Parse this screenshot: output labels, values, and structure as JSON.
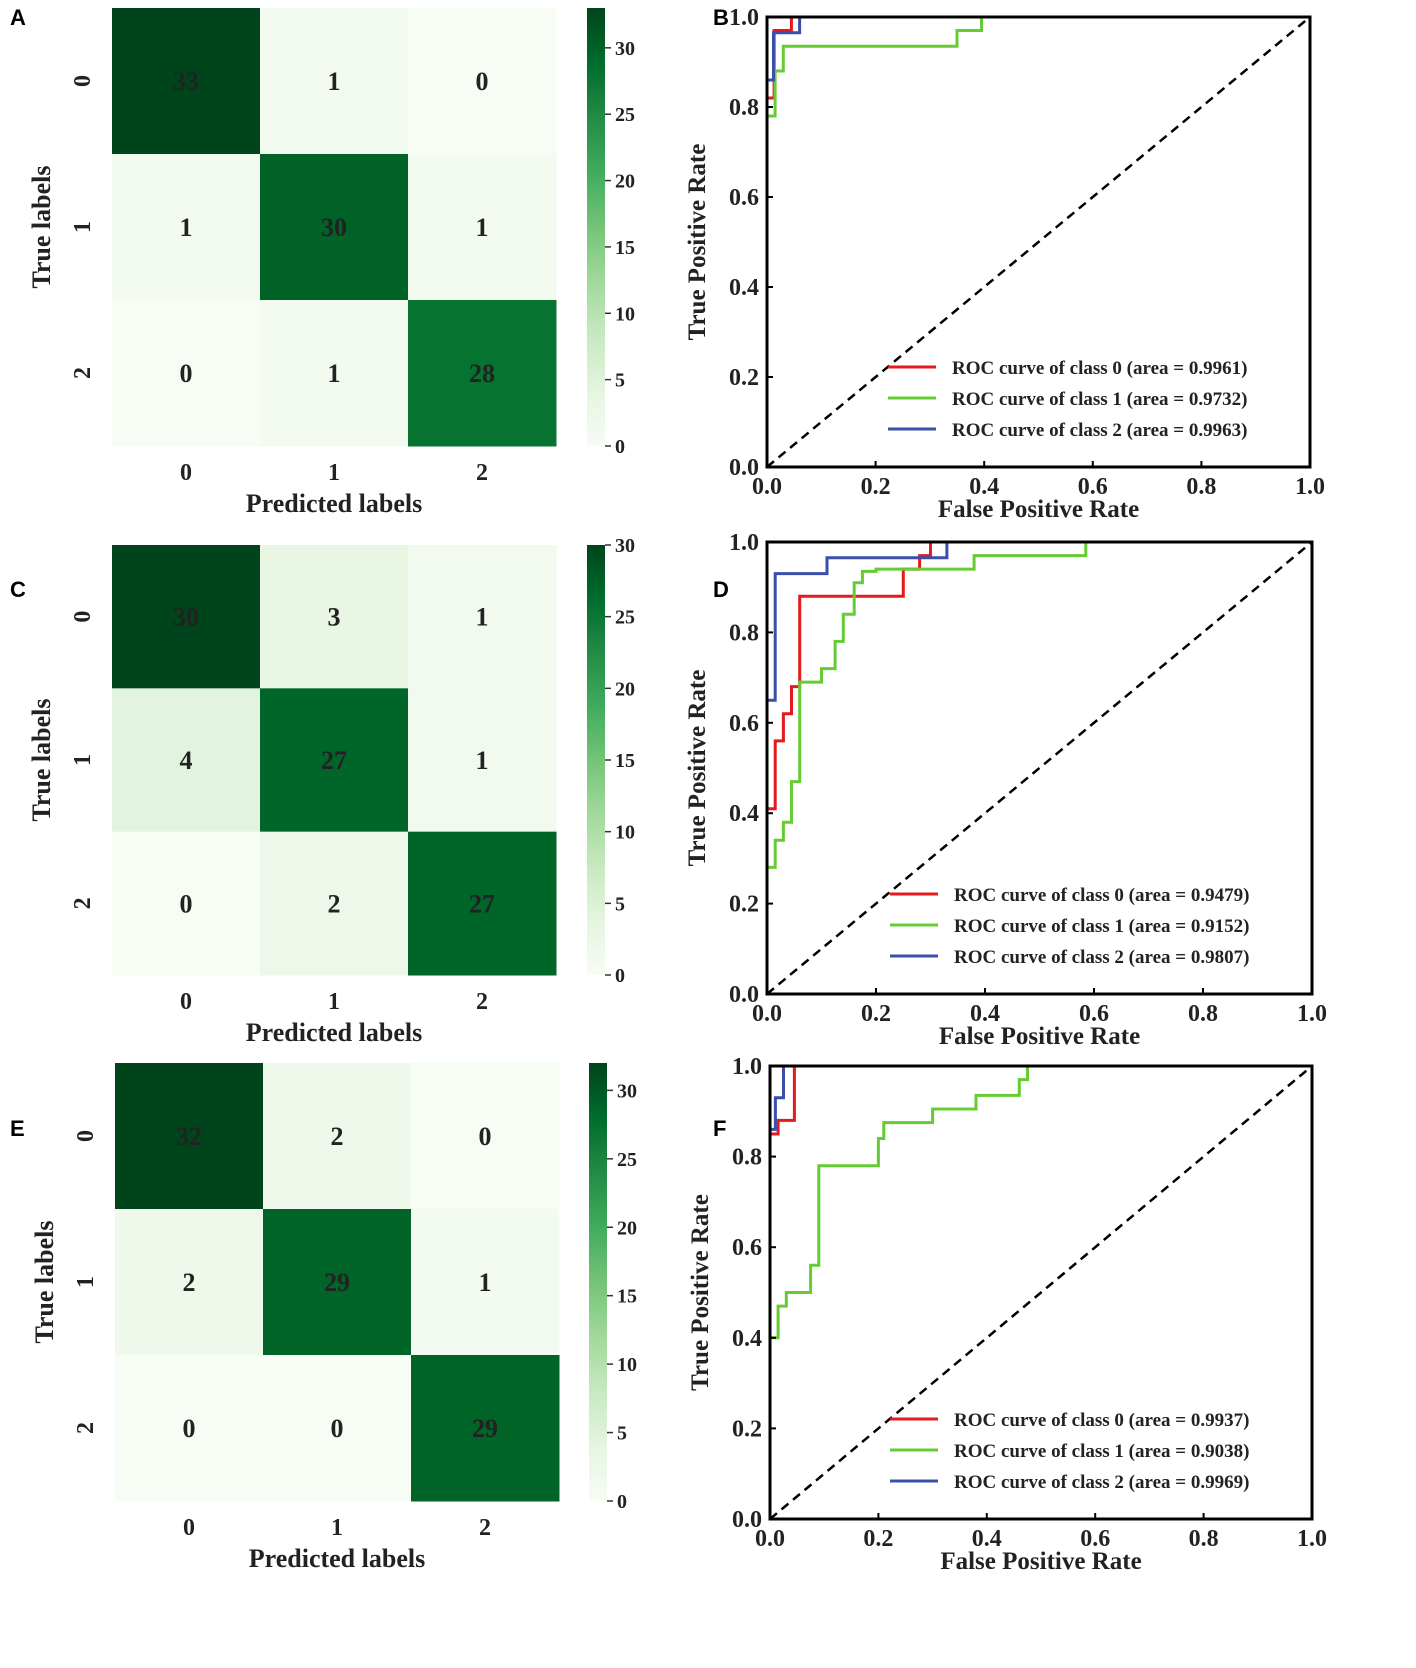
{
  "colors": {
    "cmap_low": "#f7fcf5",
    "cmap_high": "#00441b",
    "roc_class0": "#e41a1c",
    "roc_class1": "#66cc33",
    "roc_class2": "#3a4fa8",
    "diagonal": "#000000"
  },
  "chart_data": [
    {
      "panel": "A",
      "type": "heatmap",
      "matrix": [
        [
          33,
          1,
          0
        ],
        [
          1,
          30,
          1
        ],
        [
          0,
          1,
          28
        ]
      ],
      "row_labels": [
        "0",
        "1",
        "2"
      ],
      "col_labels": [
        "0",
        "1",
        "2"
      ],
      "xlabel": "Predicted labels",
      "ylabel": "True labels",
      "vmin": 0,
      "vmax": 33,
      "colorbar_ticks": [
        0,
        5,
        10,
        15,
        20,
        25,
        30
      ],
      "colorbar_tick_labels": [
        "0",
        "5",
        "10",
        "15",
        "20",
        "25",
        "30"
      ]
    },
    {
      "panel": "B",
      "type": "line",
      "xlabel": "False Positive Rate",
      "ylabel": "True Positive Rate",
      "xlim": [
        0.0,
        1.0
      ],
      "ylim": [
        0.0,
        1.0
      ],
      "xticks": [
        "0.0",
        "0.2",
        "0.4",
        "0.6",
        "0.8",
        "1.0"
      ],
      "yticks": [
        "0.0",
        "0.2",
        "0.4",
        "0.6",
        "0.8",
        "1.0"
      ],
      "legend_position": "lower-right",
      "series": [
        {
          "name": "ROC curve of class 0 (area = 0.9961)",
          "color_key": "roc_class0",
          "x": [
            0,
            0,
            0.013,
            0.013,
            0.045,
            0.045,
            0.06
          ],
          "y": [
            0,
            0.82,
            0.82,
            0.97,
            0.97,
            1.0,
            1.0
          ]
        },
        {
          "name": "ROC curve of class 1 (area = 0.9732)",
          "color_key": "roc_class1",
          "x": [
            0,
            0,
            0.015,
            0.015,
            0.03,
            0.03,
            0.35,
            0.35,
            0.395,
            0.395,
            1.0
          ],
          "y": [
            0,
            0.78,
            0.78,
            0.88,
            0.88,
            0.935,
            0.935,
            0.97,
            0.97,
            1.0,
            1.0
          ]
        },
        {
          "name": "ROC curve of class 2 (area = 0.9963)",
          "color_key": "roc_class2",
          "x": [
            0,
            0,
            0.012,
            0.012,
            0.06,
            0.06,
            0.09
          ],
          "y": [
            0,
            0.86,
            0.86,
            0.965,
            0.965,
            1.0,
            1.0
          ]
        },
        {
          "name": "chance",
          "color_key": "diagonal",
          "dashed": true,
          "x": [
            0,
            1
          ],
          "y": [
            0,
            1
          ]
        }
      ]
    },
    {
      "panel": "C",
      "type": "heatmap",
      "matrix": [
        [
          30,
          3,
          1
        ],
        [
          4,
          27,
          1
        ],
        [
          0,
          2,
          27
        ]
      ],
      "row_labels": [
        "0",
        "1",
        "2"
      ],
      "col_labels": [
        "0",
        "1",
        "2"
      ],
      "xlabel": "Predicted labels",
      "ylabel": "True labels",
      "vmin": 0,
      "vmax": 30,
      "colorbar_ticks": [
        0,
        5,
        10,
        15,
        20,
        25,
        30
      ],
      "colorbar_tick_labels": [
        "0",
        "5",
        "10",
        "15",
        "20",
        "25",
        "30"
      ]
    },
    {
      "panel": "D",
      "type": "line",
      "xlabel": "False Positive Rate",
      "ylabel": "True Positive Rate",
      "xlim": [
        0.0,
        1.0
      ],
      "ylim": [
        0.0,
        1.0
      ],
      "xticks": [
        "0.0",
        "0.2",
        "0.4",
        "0.6",
        "0.8",
        "1.0"
      ],
      "yticks": [
        "0.0",
        "0.2",
        "0.4",
        "0.6",
        "0.8",
        "1.0"
      ],
      "legend_position": "lower-right",
      "series": [
        {
          "name": "ROC curve of class 0 (area = 0.9479)",
          "color_key": "roc_class0",
          "x": [
            0,
            0,
            0.015,
            0.015,
            0.03,
            0.03,
            0.045,
            0.045,
            0.06,
            0.06,
            0.25,
            0.25,
            0.28,
            0.28,
            0.3,
            0.3,
            1.0
          ],
          "y": [
            0,
            0.41,
            0.41,
            0.56,
            0.56,
            0.62,
            0.62,
            0.68,
            0.68,
            0.88,
            0.88,
            0.94,
            0.94,
            0.97,
            0.97,
            1.0,
            1.0
          ]
        },
        {
          "name": "ROC curve of class 1 (area = 0.9152)",
          "color_key": "roc_class1",
          "x": [
            0,
            0,
            0.015,
            0.015,
            0.03,
            0.03,
            0.045,
            0.045,
            0.06,
            0.06,
            0.1,
            0.1,
            0.125,
            0.125,
            0.14,
            0.14,
            0.16,
            0.16,
            0.175,
            0.175,
            0.2,
            0.2,
            0.38,
            0.38,
            0.585,
            0.585,
            1.0
          ],
          "y": [
            0,
            0.28,
            0.28,
            0.34,
            0.34,
            0.38,
            0.38,
            0.47,
            0.47,
            0.69,
            0.69,
            0.72,
            0.72,
            0.78,
            0.78,
            0.84,
            0.84,
            0.91,
            0.91,
            0.935,
            0.935,
            0.94,
            0.94,
            0.97,
            0.97,
            1.0,
            1.0
          ]
        },
        {
          "name": "ROC curve of class 2 (area = 0.9807)",
          "color_key": "roc_class2",
          "x": [
            0,
            0,
            0.015,
            0.015,
            0.11,
            0.11,
            0.33,
            0.33,
            1.0
          ],
          "y": [
            0,
            0.65,
            0.65,
            0.93,
            0.93,
            0.965,
            0.965,
            1.0,
            1.0
          ]
        },
        {
          "name": "chance",
          "color_key": "diagonal",
          "dashed": true,
          "x": [
            0,
            1
          ],
          "y": [
            0,
            1
          ]
        }
      ]
    },
    {
      "panel": "E",
      "type": "heatmap",
      "matrix": [
        [
          32,
          2,
          0
        ],
        [
          2,
          29,
          1
        ],
        [
          0,
          0,
          29
        ]
      ],
      "row_labels": [
        "0",
        "1",
        "2"
      ],
      "col_labels": [
        "0",
        "1",
        "2"
      ],
      "xlabel": "Predicted labels",
      "ylabel": "True labels",
      "vmin": 0,
      "vmax": 32,
      "colorbar_ticks": [
        0,
        5,
        10,
        15,
        20,
        25,
        30
      ],
      "colorbar_tick_labels": [
        "0",
        "5",
        "10",
        "15",
        "20",
        "25",
        "30"
      ]
    },
    {
      "panel": "F",
      "type": "line",
      "xlabel": "False Positive Rate",
      "ylabel": "True Positive Rate",
      "xlim": [
        0.0,
        1.0
      ],
      "ylim": [
        0.0,
        1.0
      ],
      "xticks": [
        "0.0",
        "0.2",
        "0.4",
        "0.6",
        "0.8",
        "1.0"
      ],
      "yticks": [
        "0.0",
        "0.2",
        "0.4",
        "0.6",
        "0.8",
        "1.0"
      ],
      "legend_position": "lower-right",
      "series": [
        {
          "name": "ROC curve of class 0 (area = 0.9937)",
          "color_key": "roc_class0",
          "x": [
            0,
            0,
            0.015,
            0.015,
            0.045,
            0.045,
            0.06
          ],
          "y": [
            0,
            0.85,
            0.85,
            0.88,
            0.88,
            1.0,
            1.0
          ]
        },
        {
          "name": "ROC curve of class 1 (area = 0.9038)",
          "color_key": "roc_class1",
          "x": [
            0,
            0,
            0.015,
            0.015,
            0.03,
            0.03,
            0.075,
            0.075,
            0.09,
            0.09,
            0.2,
            0.2,
            0.21,
            0.21,
            0.3,
            0.3,
            0.38,
            0.38,
            0.46,
            0.46,
            0.475,
            0.475,
            1.0
          ],
          "y": [
            0,
            0.4,
            0.4,
            0.47,
            0.47,
            0.5,
            0.5,
            0.56,
            0.56,
            0.78,
            0.78,
            0.84,
            0.84,
            0.875,
            0.875,
            0.905,
            0.905,
            0.935,
            0.935,
            0.97,
            0.97,
            1.0,
            1.0
          ]
        },
        {
          "name": "ROC curve of class 2 (area = 0.9969)",
          "color_key": "roc_class2",
          "x": [
            0,
            0,
            0.01,
            0.01,
            0.025,
            0.025,
            0.04
          ],
          "y": [
            0,
            0.86,
            0.86,
            0.93,
            0.93,
            1.0,
            1.0
          ]
        },
        {
          "name": "chance",
          "color_key": "diagonal",
          "dashed": true,
          "x": [
            0,
            1
          ],
          "y": [
            0,
            1
          ]
        }
      ]
    }
  ]
}
